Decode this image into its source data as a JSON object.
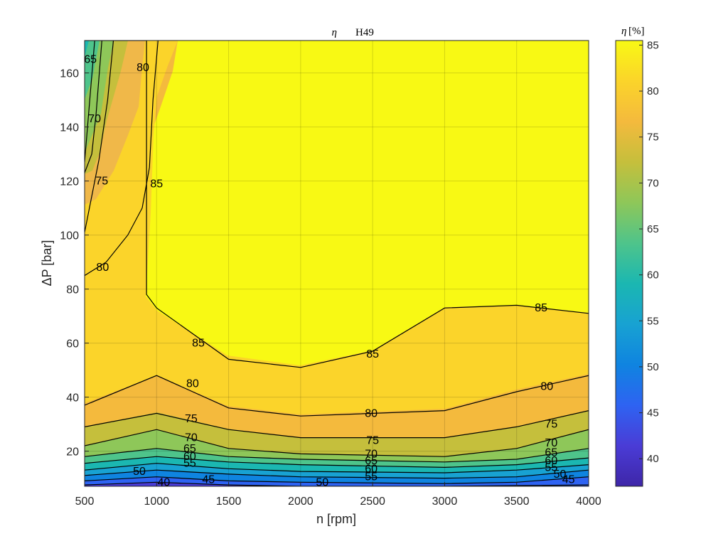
{
  "chart_data": {
    "type": "contour",
    "title_symbol": "η",
    "title_text": "H49",
    "xlabel": "n [rpm]",
    "ylabel": "ΔP [bar]",
    "xlim": [
      500,
      4000
    ],
    "ylim": [
      7,
      172
    ],
    "xticks": [
      "500",
      "1000",
      "1500",
      "2000",
      "2500",
      "3000",
      "3500",
      "4000"
    ],
    "yticks": [
      "20",
      "40",
      "60",
      "80",
      "100",
      "120",
      "140",
      "160"
    ],
    "grid": true,
    "colorbar": {
      "label_symbol": "η",
      "label_unit": "[%]",
      "range": [
        37,
        85.5
      ],
      "ticks": [
        "40",
        "45",
        "50",
        "55",
        "60",
        "65",
        "70",
        "75",
        "80",
        "85"
      ],
      "colormap": [
        "#3e26a8",
        "#4a3cd6",
        "#2e63f2",
        "#0f84e0",
        "#18a2d2",
        "#1bb7b1",
        "#4ec48b",
        "#8ec759",
        "#c5bf3c",
        "#f4ba3d",
        "#fbd42a",
        "#f8f914"
      ]
    },
    "contour_levels": [
      40,
      45,
      50,
      55,
      60,
      65,
      70,
      75,
      80,
      85
    ],
    "contours": [
      {
        "level": 85,
        "label": "85",
        "points": [
          [
            500,
            172
          ],
          [
            930,
            172
          ],
          [
            930,
            78
          ],
          [
            1000,
            73
          ],
          [
            1500,
            54
          ],
          [
            2000,
            51
          ],
          [
            2500,
            57
          ],
          [
            3000,
            73
          ],
          [
            3500,
            74
          ],
          [
            4000,
            71
          ]
        ]
      },
      {
        "level": 80,
        "label": "80",
        "points": [
          [
            1010,
            172
          ],
          [
            975,
            150
          ],
          [
            950,
            125
          ],
          [
            900,
            110
          ],
          [
            800,
            100
          ],
          [
            650,
            90
          ],
          [
            500,
            85
          ]
        ]
      },
      {
        "level": 80,
        "label": "80",
        "points": [
          [
            500,
            37
          ],
          [
            1000,
            48
          ],
          [
            1500,
            36
          ],
          [
            2000,
            33
          ],
          [
            3000,
            35
          ],
          [
            3500,
            42
          ],
          [
            4000,
            48
          ]
        ]
      },
      {
        "level": 75,
        "label": "75",
        "points": [
          [
            700,
            172
          ],
          [
            660,
            150
          ],
          [
            600,
            128
          ],
          [
            500,
            101
          ]
        ]
      },
      {
        "level": 75,
        "label": "75",
        "points": [
          [
            500,
            29
          ],
          [
            1000,
            34
          ],
          [
            1500,
            28
          ],
          [
            2000,
            25
          ],
          [
            3000,
            25
          ],
          [
            3500,
            29
          ],
          [
            4000,
            35
          ]
        ]
      },
      {
        "level": 70,
        "label": "70",
        "points": [
          [
            620,
            172
          ],
          [
            580,
            145
          ],
          [
            550,
            130
          ],
          [
            500,
            123
          ]
        ]
      },
      {
        "level": 70,
        "label": "70",
        "points": [
          [
            500,
            22
          ],
          [
            1000,
            28
          ],
          [
            1500,
            21
          ],
          [
            2000,
            19
          ],
          [
            3000,
            18
          ],
          [
            3500,
            21
          ],
          [
            4000,
            28
          ]
        ]
      },
      {
        "level": 65,
        "label": "65",
        "points": [
          [
            570,
            172
          ],
          [
            520,
            140
          ],
          [
            500,
            127
          ]
        ]
      },
      {
        "level": 65,
        "label": "65",
        "points": [
          [
            500,
            18
          ],
          [
            1000,
            21
          ],
          [
            1500,
            18
          ],
          [
            2000,
            17
          ],
          [
            3000,
            16
          ],
          [
            3500,
            17
          ],
          [
            4000,
            21
          ]
        ]
      },
      {
        "level": 60,
        "label": "60",
        "points": [
          [
            500,
            15.5
          ],
          [
            1000,
            18
          ],
          [
            1500,
            16
          ],
          [
            2000,
            15
          ],
          [
            3000,
            14
          ],
          [
            3500,
            15
          ],
          [
            4000,
            17.5
          ]
        ]
      },
      {
        "level": 55,
        "label": "55",
        "points": [
          [
            500,
            13
          ],
          [
            1000,
            15.5
          ],
          [
            1500,
            13.5
          ],
          [
            2000,
            12.5
          ],
          [
            3000,
            12
          ],
          [
            3500,
            13
          ],
          [
            4000,
            15
          ]
        ]
      },
      {
        "level": 50,
        "label": "50",
        "points": [
          [
            500,
            11
          ],
          [
            1000,
            13
          ],
          [
            1500,
            11.5
          ],
          [
            2000,
            10.5
          ],
          [
            3000,
            10
          ],
          [
            3500,
            10.5
          ],
          [
            4000,
            13
          ]
        ]
      },
      {
        "level": 45,
        "label": "45",
        "points": [
          [
            500,
            9
          ],
          [
            1000,
            10.5
          ],
          [
            1500,
            9
          ],
          [
            2000,
            8.5
          ],
          [
            3000,
            8
          ],
          [
            3500,
            8.5
          ],
          [
            4000,
            10.5
          ]
        ]
      },
      {
        "level": 40,
        "label": "40",
        "points": [
          [
            500,
            7.5
          ],
          [
            1000,
            8.5
          ],
          [
            1500,
            7.5
          ],
          [
            2000,
            7
          ],
          [
            3000,
            7
          ],
          [
            4000,
            7.5
          ]
        ]
      }
    ],
    "inline_labels": [
      {
        "text": "65",
        "x": 540,
        "y": 165
      },
      {
        "text": "80",
        "x": 905,
        "y": 162
      },
      {
        "text": "70",
        "x": 570,
        "y": 143
      },
      {
        "text": "85",
        "x": 1000,
        "y": 119
      },
      {
        "text": "75",
        "x": 620,
        "y": 120
      },
      {
        "text": "80",
        "x": 625,
        "y": 88
      },
      {
        "text": "85",
        "x": 1290,
        "y": 60
      },
      {
        "text": "85",
        "x": 2500,
        "y": 56
      },
      {
        "text": "85",
        "x": 3670,
        "y": 73
      },
      {
        "text": "80",
        "x": 1250,
        "y": 45
      },
      {
        "text": "80",
        "x": 2490,
        "y": 34
      },
      {
        "text": "80",
        "x": 3710,
        "y": 44
      },
      {
        "text": "75",
        "x": 1240,
        "y": 32
      },
      {
        "text": "75",
        "x": 2500,
        "y": 24
      },
      {
        "text": "75",
        "x": 3740,
        "y": 30
      },
      {
        "text": "70",
        "x": 1240,
        "y": 25
      },
      {
        "text": "70",
        "x": 2490,
        "y": 19
      },
      {
        "text": "70",
        "x": 3740,
        "y": 23
      },
      {
        "text": "65",
        "x": 1230,
        "y": 21
      },
      {
        "text": "65",
        "x": 2490,
        "y": 16.5
      },
      {
        "text": "65",
        "x": 3740,
        "y": 19.5
      },
      {
        "text": "60",
        "x": 1230,
        "y": 18
      },
      {
        "text": "60",
        "x": 2490,
        "y": 13.5
      },
      {
        "text": "60",
        "x": 3740,
        "y": 16.5
      },
      {
        "text": "55",
        "x": 1230,
        "y": 15.5
      },
      {
        "text": "55",
        "x": 2490,
        "y": 10.5
      },
      {
        "text": "55",
        "x": 3740,
        "y": 14
      },
      {
        "text": "50",
        "x": 880,
        "y": 12.5
      },
      {
        "text": "50",
        "x": 2150,
        "y": 8.5
      },
      {
        "text": "50",
        "x": 3800,
        "y": 11.5
      },
      {
        "text": "45",
        "x": 1360,
        "y": 9.5
      },
      {
        "text": "45",
        "x": 3860,
        "y": 9.5
      },
      {
        "text": "40",
        "x": 1050,
        "y": 8.5
      }
    ]
  }
}
